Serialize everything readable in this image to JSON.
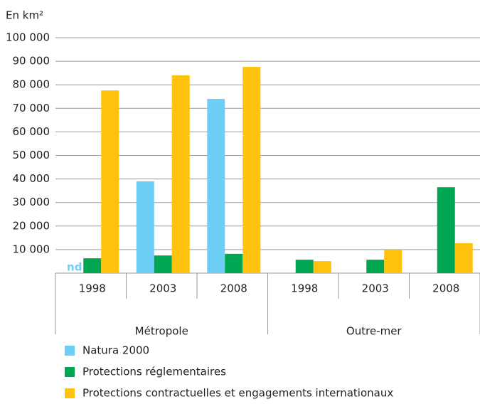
{
  "chart_data": {
    "type": "bar",
    "ylabel": "En km²",
    "categories": [
      "1998",
      "2003",
      "2008",
      "1998",
      "2003",
      "2008"
    ],
    "groups": [
      "Métropole",
      "Outre-mer"
    ],
    "series": [
      {
        "name": "Natura 2000",
        "color": "#6dcff6",
        "values": [
          null,
          39000,
          74000,
          null,
          null,
          null
        ]
      },
      {
        "name": "Protections réglementaires",
        "color": "#00a651",
        "values": [
          6300,
          7500,
          8200,
          5700,
          5700,
          36500
        ]
      },
      {
        "name": "Protections contractuelles et engagements internationaux",
        "color": "#ffc20e",
        "values": [
          77600,
          84000,
          87600,
          5100,
          10000,
          12700
        ]
      }
    ],
    "annotations": [
      "nd"
    ],
    "ylim": [
      0,
      100000
    ],
    "yticks": [
      {
        "value": 10000,
        "label": "10 000"
      },
      {
        "value": 20000,
        "label": "20 000"
      },
      {
        "value": 30000,
        "label": "30 000"
      },
      {
        "value": 40000,
        "label": "40 000"
      },
      {
        "value": 50000,
        "label": "50 000"
      },
      {
        "value": 60000,
        "label": "60 000"
      },
      {
        "value": 70000,
        "label": "70 000"
      },
      {
        "value": 80000,
        "label": "80 000"
      },
      {
        "value": 90000,
        "label": "90 000"
      },
      {
        "value": 100000,
        "label": "100 000"
      }
    ],
    "grid": true
  }
}
